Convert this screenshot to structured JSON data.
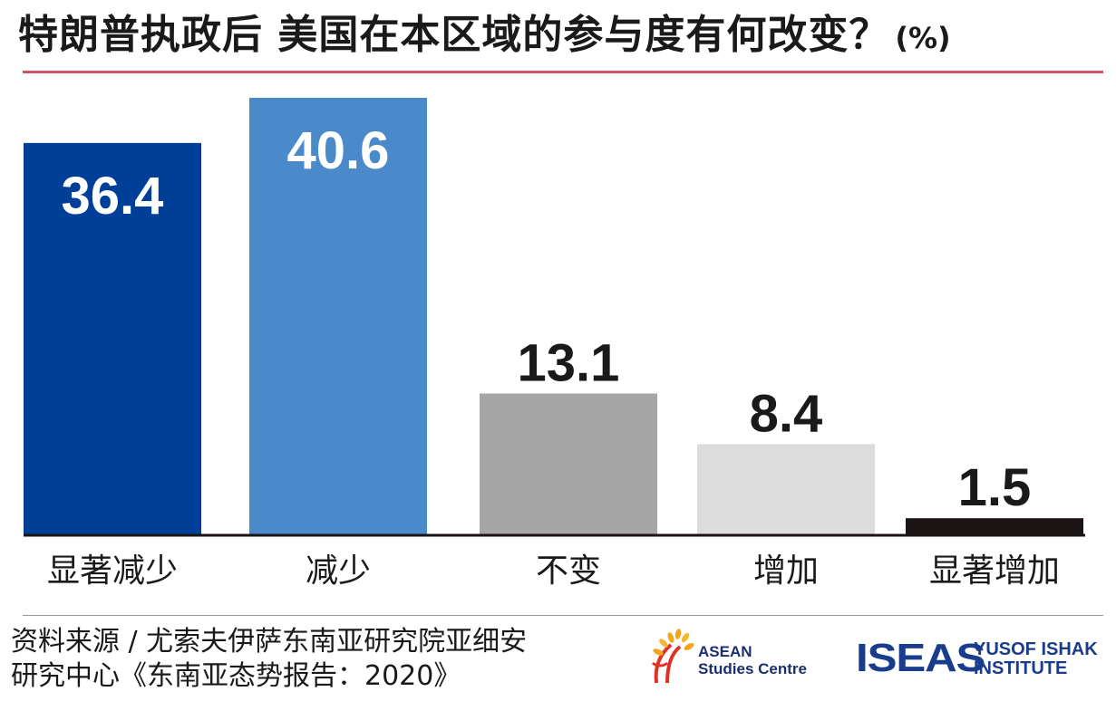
{
  "title": "特朗普执政后  美国在本区域的参与度有何改变？",
  "unit": "(%)",
  "chart_data": {
    "type": "bar",
    "title": "特朗普执政后  美国在本区域的参与度有何改变？",
    "unit": "(%)",
    "categories": [
      "显著减少",
      "减少",
      "不变",
      "增加",
      "显著增加"
    ],
    "values": [
      36.4,
      40.6,
      13.1,
      8.4,
      1.5
    ],
    "value_labels": [
      "36.4",
      "40.6",
      "13.1",
      "8.4",
      "1.5"
    ],
    "ylim": [
      0,
      40.6
    ],
    "grid": false,
    "legend": "none",
    "colors": [
      "#003f98",
      "#4a8acb",
      "#a6a6a6",
      "#dcdcdc",
      "#1a1414"
    ],
    "label_colors": [
      "#ffffff",
      "#ffffff",
      "#1a1a1a",
      "#1a1a1a",
      "#1a1a1a"
    ],
    "label_inside": [
      true,
      true,
      false,
      false,
      false
    ]
  },
  "source": {
    "line1": "资料来源 / 尤索夫伊萨东南亚研究院亚细安",
    "line2": "研究中心《东南亚态势报告：2020》"
  },
  "logos": {
    "asean_line1": "ASEAN",
    "asean_line2": "Studies Centre",
    "iseas_word": "ISEAS",
    "iseas_line1": "YUSOF ISHAK",
    "iseas_line2": "INSTITUTE"
  }
}
